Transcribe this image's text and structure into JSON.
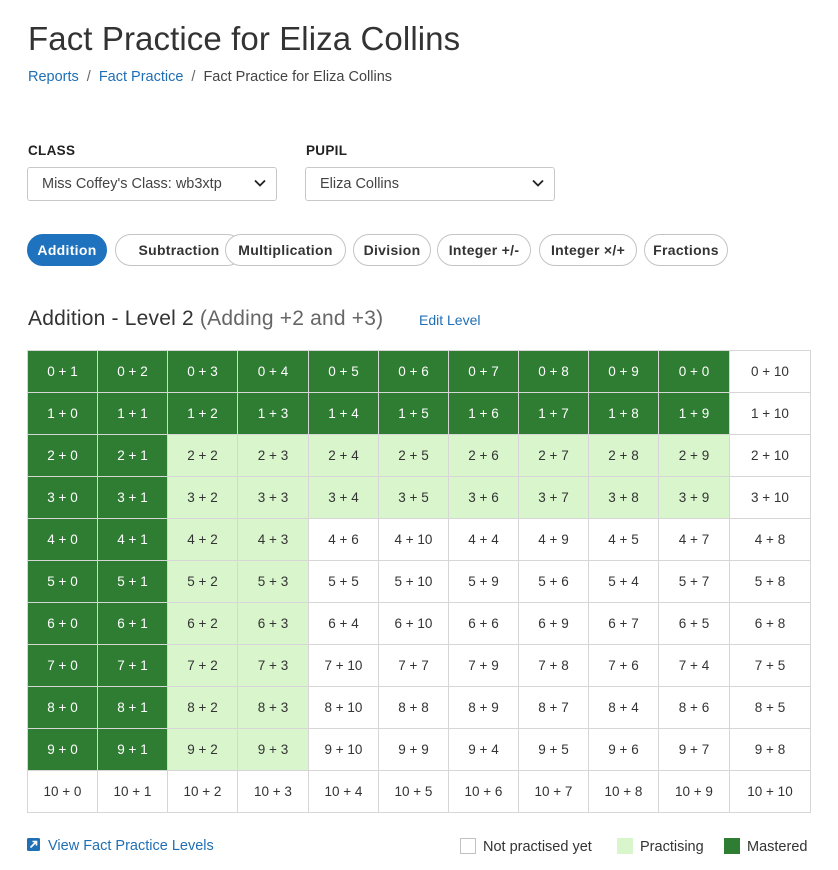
{
  "page": {
    "title": "Fact Practice for Eliza Collins"
  },
  "breadcrumb": {
    "items": [
      "Reports",
      "Fact Practice",
      "Fact Practice for Eliza Collins"
    ],
    "separator": "/"
  },
  "filters": {
    "class": {
      "label": "CLASS",
      "value": "Miss Coffey's Class: wb3xtp"
    },
    "pupil": {
      "label": "PUPIL",
      "value": "Eliza Collins"
    }
  },
  "tabs": [
    {
      "label": "Addition",
      "active": true
    },
    {
      "label": "Subtraction",
      "active": false
    },
    {
      "label": "Multiplication",
      "active": false
    },
    {
      "label": "Division",
      "active": false
    },
    {
      "label": "Integer +/-",
      "active": false
    },
    {
      "label": "Integer ×/+",
      "active": false
    },
    {
      "label": "Fractions",
      "active": false
    }
  ],
  "level": {
    "title": "Addition - Level 2",
    "subtitle": "(Adding +2 and +3)",
    "edit_label": "Edit Level"
  },
  "grid": {
    "rows": [
      [
        [
          "0 + 1",
          "m"
        ],
        [
          "0 + 2",
          "m"
        ],
        [
          "0 + 3",
          "m"
        ],
        [
          "0 + 4",
          "m"
        ],
        [
          "0 + 5",
          "m"
        ],
        [
          "0 + 6",
          "m"
        ],
        [
          "0 + 7",
          "m"
        ],
        [
          "0 + 8",
          "m"
        ],
        [
          "0 + 9",
          "m"
        ],
        [
          "0 + 0",
          "m"
        ],
        [
          "0 + 10",
          "n"
        ]
      ],
      [
        [
          "1 + 0",
          "m"
        ],
        [
          "1 + 1",
          "m"
        ],
        [
          "1 + 2",
          "m"
        ],
        [
          "1 + 3",
          "m"
        ],
        [
          "1 + 4",
          "m"
        ],
        [
          "1 + 5",
          "m"
        ],
        [
          "1 + 6",
          "m"
        ],
        [
          "1 + 7",
          "m"
        ],
        [
          "1 + 8",
          "m"
        ],
        [
          "1 + 9",
          "m"
        ],
        [
          "1 + 10",
          "n"
        ]
      ],
      [
        [
          "2 + 0",
          "m"
        ],
        [
          "2 + 1",
          "m"
        ],
        [
          "2 + 2",
          "p"
        ],
        [
          "2 + 3",
          "p"
        ],
        [
          "2 + 4",
          "p"
        ],
        [
          "2 + 5",
          "p"
        ],
        [
          "2 + 6",
          "p"
        ],
        [
          "2 + 7",
          "p"
        ],
        [
          "2 + 8",
          "p"
        ],
        [
          "2 + 9",
          "p"
        ],
        [
          "2 + 10",
          "n"
        ]
      ],
      [
        [
          "3 + 0",
          "m"
        ],
        [
          "3 + 1",
          "m"
        ],
        [
          "3 + 2",
          "p"
        ],
        [
          "3 + 3",
          "p"
        ],
        [
          "3 + 4",
          "p"
        ],
        [
          "3 + 5",
          "p"
        ],
        [
          "3 + 6",
          "p"
        ],
        [
          "3 + 7",
          "p"
        ],
        [
          "3 + 8",
          "p"
        ],
        [
          "3 + 9",
          "p"
        ],
        [
          "3 + 10",
          "n"
        ]
      ],
      [
        [
          "4 + 0",
          "m"
        ],
        [
          "4 + 1",
          "m"
        ],
        [
          "4 + 2",
          "p"
        ],
        [
          "4 + 3",
          "p"
        ],
        [
          "4 + 6",
          "n"
        ],
        [
          "4 + 10",
          "n"
        ],
        [
          "4 + 4",
          "n"
        ],
        [
          "4 + 9",
          "n"
        ],
        [
          "4 + 5",
          "n"
        ],
        [
          "4 + 7",
          "n"
        ],
        [
          "4 + 8",
          "n"
        ]
      ],
      [
        [
          "5 + 0",
          "m"
        ],
        [
          "5 + 1",
          "m"
        ],
        [
          "5 + 2",
          "p"
        ],
        [
          "5 + 3",
          "p"
        ],
        [
          "5 + 5",
          "n"
        ],
        [
          "5 + 10",
          "n"
        ],
        [
          "5 + 9",
          "n"
        ],
        [
          "5 + 6",
          "n"
        ],
        [
          "5 + 4",
          "n"
        ],
        [
          "5 + 7",
          "n"
        ],
        [
          "5 + 8",
          "n"
        ]
      ],
      [
        [
          "6 + 0",
          "m"
        ],
        [
          "6 + 1",
          "m"
        ],
        [
          "6 + 2",
          "p"
        ],
        [
          "6 + 3",
          "p"
        ],
        [
          "6 + 4",
          "n"
        ],
        [
          "6 + 10",
          "n"
        ],
        [
          "6 + 6",
          "n"
        ],
        [
          "6 + 9",
          "n"
        ],
        [
          "6 + 7",
          "n"
        ],
        [
          "6 + 5",
          "n"
        ],
        [
          "6 + 8",
          "n"
        ]
      ],
      [
        [
          "7 + 0",
          "m"
        ],
        [
          "7 + 1",
          "m"
        ],
        [
          "7 + 2",
          "p"
        ],
        [
          "7 + 3",
          "p"
        ],
        [
          "7 + 10",
          "n"
        ],
        [
          "7 + 7",
          "n"
        ],
        [
          "7 + 9",
          "n"
        ],
        [
          "7 + 8",
          "n"
        ],
        [
          "7 + 6",
          "n"
        ],
        [
          "7 + 4",
          "n"
        ],
        [
          "7 + 5",
          "n"
        ]
      ],
      [
        [
          "8 + 0",
          "m"
        ],
        [
          "8 + 1",
          "m"
        ],
        [
          "8 + 2",
          "p"
        ],
        [
          "8 + 3",
          "p"
        ],
        [
          "8 + 10",
          "n"
        ],
        [
          "8 + 8",
          "n"
        ],
        [
          "8 + 9",
          "n"
        ],
        [
          "8 + 7",
          "n"
        ],
        [
          "8 + 4",
          "n"
        ],
        [
          "8 + 6",
          "n"
        ],
        [
          "8 + 5",
          "n"
        ]
      ],
      [
        [
          "9 + 0",
          "m"
        ],
        [
          "9 + 1",
          "m"
        ],
        [
          "9 + 2",
          "p"
        ],
        [
          "9 + 3",
          "p"
        ],
        [
          "9 + 10",
          "n"
        ],
        [
          "9 + 9",
          "n"
        ],
        [
          "9 + 4",
          "n"
        ],
        [
          "9 + 5",
          "n"
        ],
        [
          "9 + 6",
          "n"
        ],
        [
          "9 + 7",
          "n"
        ],
        [
          "9 + 8",
          "n"
        ]
      ],
      [
        [
          "10 + 0",
          "n"
        ],
        [
          "10 + 1",
          "n"
        ],
        [
          "10 + 2",
          "n"
        ],
        [
          "10 + 3",
          "n"
        ],
        [
          "10 + 4",
          "n"
        ],
        [
          "10 + 5",
          "n"
        ],
        [
          "10 + 6",
          "n"
        ],
        [
          "10 + 7",
          "n"
        ],
        [
          "10 + 8",
          "n"
        ],
        [
          "10 + 9",
          "n"
        ],
        [
          "10 + 10",
          "n"
        ]
      ]
    ]
  },
  "footer": {
    "view_levels_label": "View Fact Practice Levels",
    "link_icon": "external-link-icon"
  },
  "legend": [
    {
      "key": "not-practised",
      "label": "Not practised yet"
    },
    {
      "key": "practising",
      "label": "Practising"
    },
    {
      "key": "mastered",
      "label": "Mastered"
    }
  ],
  "colors": {
    "mastered": "#2e7d32",
    "practising": "#d9f5cc",
    "not_practised": "#ffffff",
    "accent": "#1f72bd",
    "link": "#1f6fb5"
  }
}
